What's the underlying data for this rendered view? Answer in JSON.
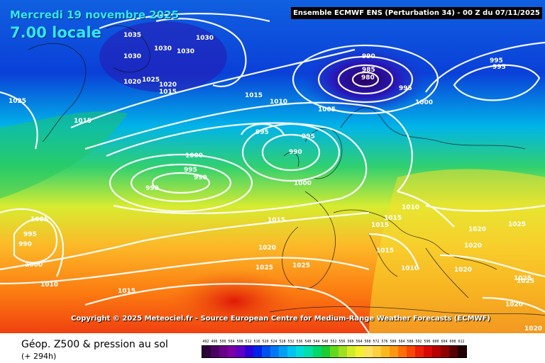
{
  "map": {
    "date": "Mercredi 19 novembre 2025",
    "local_time": "7.00 locale",
    "header": "Ensemble ECMWF ENS  (Perturbation 34)  - 00 Z du 07/11/2025",
    "copyright": "Copyright © 2025 Meteociel.fr - Source European Centre for Medium-Range Weather Forecasts (ECMWF)",
    "pressure_labels": [
      {
        "v": "1035"
      },
      {
        "v": "1030"
      },
      {
        "v": "1030"
      },
      {
        "v": "1030"
      },
      {
        "v": "1030"
      },
      {
        "v": "1025"
      },
      {
        "v": "1020"
      },
      {
        "v": "1025"
      },
      {
        "v": "1020"
      },
      {
        "v": "1015"
      },
      {
        "v": "1015"
      },
      {
        "v": "1010"
      },
      {
        "v": "1005"
      },
      {
        "v": "1015"
      },
      {
        "v": "990"
      },
      {
        "v": "985"
      },
      {
        "v": "980"
      },
      {
        "v": "995"
      },
      {
        "v": "995"
      },
      {
        "v": "995"
      },
      {
        "v": "1000"
      },
      {
        "v": "995"
      },
      {
        "v": "995"
      },
      {
        "v": "990"
      },
      {
        "v": "1000"
      },
      {
        "v": "995"
      },
      {
        "v": "990"
      },
      {
        "v": "990"
      },
      {
        "v": "1000"
      },
      {
        "v": "1005"
      },
      {
        "v": "995"
      },
      {
        "v": "990"
      },
      {
        "v": "1000"
      },
      {
        "v": "1010"
      },
      {
        "v": "1015"
      },
      {
        "v": "1020"
      },
      {
        "v": "1025"
      },
      {
        "v": "1025"
      },
      {
        "v": "1015"
      },
      {
        "v": "1010"
      },
      {
        "v": "1015"
      },
      {
        "v": "1015"
      },
      {
        "v": "1010"
      },
      {
        "v": "1015"
      },
      {
        "v": "1020"
      },
      {
        "v": "1025"
      },
      {
        "v": "1020"
      },
      {
        "v": "1020"
      },
      {
        "v": "1025"
      },
      {
        "v": "1025"
      },
      {
        "v": "1020"
      },
      {
        "v": "1020"
      }
    ]
  },
  "footer": {
    "caption": "Géop. Z500 & pression au sol",
    "lead": "(+ 294h)"
  },
  "scale": {
    "ticks": [
      "492",
      "496",
      "500",
      "504",
      "508",
      "512",
      "516",
      "520",
      "524",
      "528",
      "532",
      "536",
      "540",
      "544",
      "548",
      "552",
      "556",
      "560",
      "564",
      "568",
      "572",
      "576",
      "580",
      "584",
      "588",
      "592",
      "596",
      "600",
      "604",
      "608",
      "612"
    ],
    "colors": [
      "#2d0038",
      "#4a0063",
      "#6a0087",
      "#7a00a8",
      "#5e00c4",
      "#2c00d6",
      "#0022e8",
      "#0050f0",
      "#0078f5",
      "#00a0f5",
      "#00c4f0",
      "#00dcd8",
      "#00e0a8",
      "#00d86c",
      "#1ccc30",
      "#64d820",
      "#a0e020",
      "#d4ec28",
      "#f4f030",
      "#fce060",
      "#fcd040",
      "#fcb820",
      "#fc9810",
      "#fc7008",
      "#f84808",
      "#ec2008",
      "#d80808",
      "#b80000",
      "#900000",
      "#580000",
      "#200000"
    ]
  }
}
